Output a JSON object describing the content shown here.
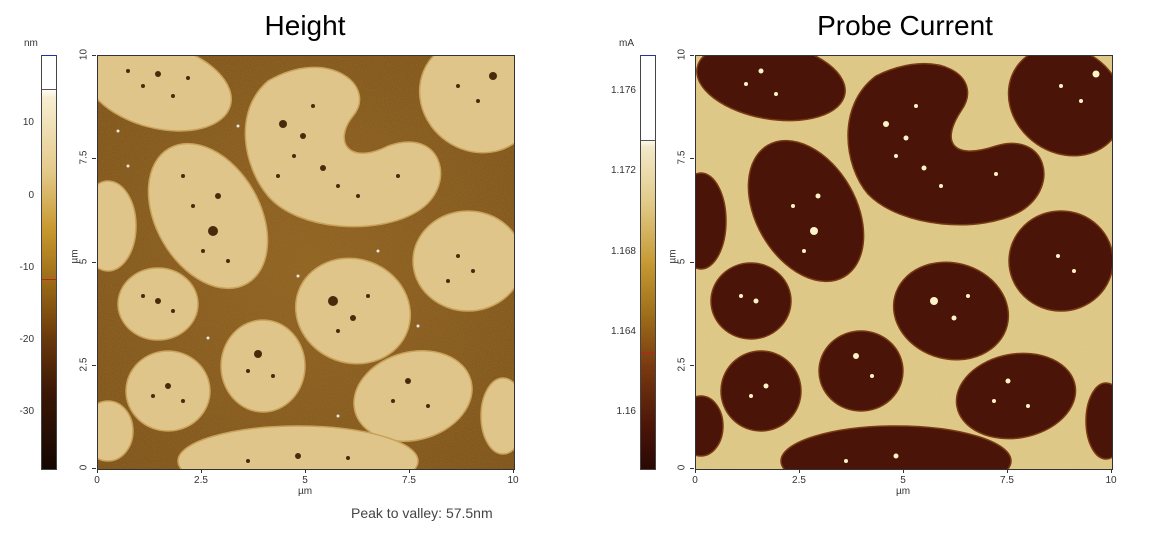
{
  "left_panel": {
    "title": "Height",
    "colorbar_unit": "nm",
    "colorbar_ticks": [
      "10",
      "0",
      "-10",
      "-20",
      "-30"
    ],
    "x_ticks": [
      "0",
      "2.5",
      "5",
      "7.5",
      "10"
    ],
    "y_ticks": [
      "0",
      "2.5",
      "5",
      "7.5",
      "10"
    ],
    "x_label": "µm",
    "y_label": "µm"
  },
  "right_panel": {
    "title": "Probe Current",
    "colorbar_unit": "mA",
    "colorbar_ticks": [
      "1.176",
      "1.172",
      "1.168",
      "1.164",
      "1.16"
    ],
    "x_ticks": [
      "0",
      "2.5",
      "5",
      "7.5",
      "10"
    ],
    "y_ticks": [
      "0",
      "2.5",
      "5",
      "7.5",
      "10"
    ],
    "x_label": "µm",
    "y_label": "µm"
  },
  "footer": {
    "peak_to_valley": "Peak to valley: 57.5nm"
  },
  "colors": {
    "height_bg": "#8a5a1a",
    "height_domain": "#e0c58a",
    "current_bg": "#e2cc8c",
    "current_domain": "#4a1408"
  }
}
